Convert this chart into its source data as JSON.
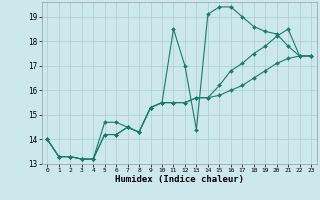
{
  "xlabel": "Humidex (Indice chaleur)",
  "xlim": [
    -0.5,
    23.5
  ],
  "ylim": [
    13.0,
    19.6
  ],
  "yticks": [
    13,
    14,
    15,
    16,
    17,
    18,
    19
  ],
  "xticks": [
    0,
    1,
    2,
    3,
    4,
    5,
    6,
    7,
    8,
    9,
    10,
    11,
    12,
    13,
    14,
    15,
    16,
    17,
    18,
    19,
    20,
    21,
    22,
    23
  ],
  "bg_color": "#cde8ec",
  "line_color": "#1a7a6e",
  "grid_color": "#aacccc",
  "series": {
    "line1": [
      14.0,
      13.3,
      13.3,
      13.2,
      13.2,
      14.7,
      14.7,
      14.5,
      14.3,
      15.3,
      15.5,
      18.5,
      17.0,
      14.4,
      19.1,
      19.4,
      19.4,
      19.0,
      18.6,
      18.4,
      18.3,
      17.8,
      17.4,
      17.4
    ],
    "line2": [
      14.0,
      13.3,
      13.3,
      13.2,
      13.2,
      14.2,
      14.2,
      14.5,
      14.3,
      15.3,
      15.5,
      15.5,
      15.5,
      15.7,
      15.7,
      16.2,
      16.8,
      17.1,
      17.5,
      17.8,
      18.2,
      18.5,
      17.4,
      17.4
    ],
    "line3": [
      14.0,
      13.3,
      13.3,
      13.2,
      13.2,
      14.2,
      14.2,
      14.5,
      14.3,
      15.3,
      15.5,
      15.5,
      15.5,
      15.7,
      15.7,
      15.8,
      16.0,
      16.2,
      16.5,
      16.8,
      17.1,
      17.3,
      17.4,
      17.4
    ]
  }
}
